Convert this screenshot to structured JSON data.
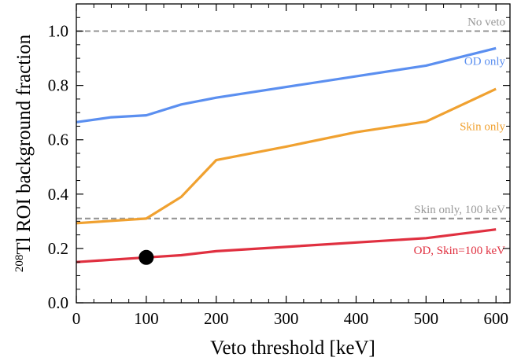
{
  "chart_data": {
    "type": "line",
    "xlabel": "Veto threshold [keV]",
    "ylabel": {
      "superscript": "208",
      "text": "Tl ROI background fraction"
    },
    "xlim": [
      0,
      620
    ],
    "ylim": [
      0,
      1.1
    ],
    "x_ticks": [
      0,
      100,
      200,
      300,
      400,
      500,
      600
    ],
    "y_ticks": [
      0.0,
      0.2,
      0.4,
      0.6,
      0.8,
      1.0
    ],
    "y_tick_labels": [
      "0.0",
      "0.2",
      "0.4",
      "0.6",
      "0.8",
      "1.0"
    ],
    "grid": false,
    "series": [
      {
        "name": "OD only",
        "color": "#5b8ff0",
        "x": [
          0,
          50,
          100,
          150,
          200,
          500,
          600
        ],
        "y": [
          0.665,
          0.683,
          0.69,
          0.73,
          0.755,
          0.873,
          0.937
        ]
      },
      {
        "name": "Skin only",
        "color": "#f0a130",
        "x": [
          0,
          100,
          150,
          200,
          300,
          400,
          500,
          600
        ],
        "y": [
          0.293,
          0.31,
          0.39,
          0.525,
          0.575,
          0.628,
          0.667,
          0.787
        ]
      },
      {
        "name": "OD, Skin=100 keV",
        "color": "#e03040",
        "x": [
          0,
          100,
          150,
          200,
          500,
          600
        ],
        "y": [
          0.15,
          0.167,
          0.175,
          0.19,
          0.238,
          0.27
        ]
      }
    ],
    "reference_lines": [
      {
        "name": "No veto",
        "y": 1.0,
        "color": "#999999",
        "style": "dashed"
      },
      {
        "name": "Skin only, 100 keV",
        "y": 0.31,
        "color": "#999999",
        "style": "dashed"
      }
    ],
    "marker": {
      "x": 100,
      "y": 0.167,
      "color": "#000000"
    }
  }
}
